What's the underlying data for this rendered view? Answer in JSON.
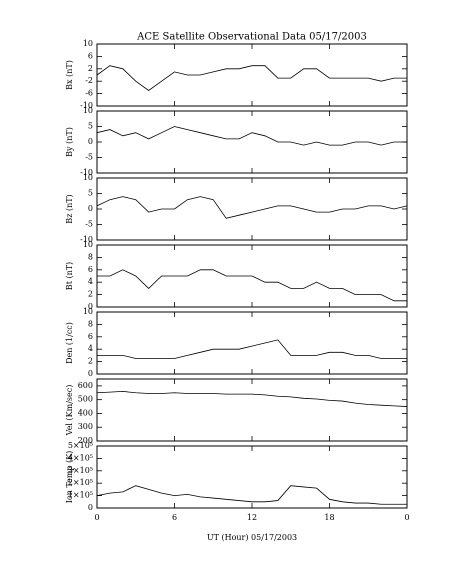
{
  "chart_data": [
    {
      "type": "line",
      "title": "ACE Satellite Observational Data   05/17/2003",
      "ylabel": "Bx (nT)",
      "ylim": [
        -10,
        10
      ],
      "yticks": [
        -10,
        -6,
        -2,
        2,
        6,
        10
      ],
      "values": [
        0,
        3,
        2,
        -2,
        -5,
        -2,
        1,
        0,
        0,
        1,
        2,
        2,
        3,
        3,
        -1,
        -1,
        2,
        2,
        -1,
        -1,
        -1,
        -1,
        -2,
        -1,
        -1
      ]
    },
    {
      "type": "line",
      "ylabel": "By (nT)",
      "ylim": [
        -10,
        10
      ],
      "yticks": [
        -10,
        -5,
        0,
        5,
        10
      ],
      "values": [
        3,
        4,
        2,
        3,
        1,
        3,
        5,
        4,
        3,
        2,
        1,
        1,
        3,
        2,
        0,
        0,
        -1,
        0,
        -1,
        -1,
        0,
        0,
        -1,
        0,
        0
      ]
    },
    {
      "type": "line",
      "ylabel": "Bz (nT)",
      "ylim": [
        -10,
        10
      ],
      "yticks": [
        -10,
        -5,
        0,
        5,
        10
      ],
      "values": [
        1,
        3,
        4,
        3,
        -1,
        0,
        0,
        3,
        4,
        3,
        -3,
        -2,
        -1,
        0,
        1,
        1,
        0,
        -1,
        -1,
        0,
        0,
        1,
        1,
        0,
        1
      ]
    },
    {
      "type": "line",
      "ylabel": "Bt (nT)",
      "ylim": [
        0,
        10
      ],
      "yticks": [
        0,
        2,
        4,
        6,
        8,
        10
      ],
      "values": [
        5,
        5,
        6,
        5,
        3,
        5,
        5,
        5,
        6,
        6,
        5,
        5,
        5,
        4,
        4,
        3,
        3,
        4,
        3,
        3,
        2,
        2,
        2,
        1,
        1
      ]
    },
    {
      "type": "line",
      "ylabel": "Den (1/cc)",
      "ylim": [
        0,
        10
      ],
      "yticks": [
        0,
        2,
        4,
        6,
        8,
        10
      ],
      "values": [
        3,
        3,
        3,
        2.5,
        2.5,
        2.5,
        2.5,
        3,
        3.5,
        4,
        4,
        4,
        4.5,
        5,
        5.5,
        3,
        3,
        3,
        3.5,
        3.5,
        3,
        3,
        2.5,
        2.5,
        2.5
      ]
    },
    {
      "type": "line",
      "ylabel": "Vel (Km/sec)",
      "ylim": [
        200,
        650
      ],
      "yticks": [
        200,
        300,
        400,
        500,
        600
      ],
      "values": [
        550,
        555,
        560,
        550,
        545,
        545,
        550,
        545,
        545,
        545,
        540,
        540,
        540,
        535,
        525,
        520,
        510,
        505,
        495,
        490,
        475,
        465,
        460,
        455,
        450
      ]
    },
    {
      "type": "line",
      "ylabel": "Ion Temp (K)",
      "xlabel": "UT (Hour)   05/17/2003",
      "ylim": [
        0,
        500000
      ],
      "yticks": [
        0,
        {
          "value": 100000,
          "label": "1×10⁵"
        },
        {
          "value": 200000,
          "label": "2×10⁵"
        },
        {
          "value": 300000,
          "label": "3×10⁵"
        },
        {
          "value": 400000,
          "label": "4×10⁵"
        },
        {
          "value": 500000,
          "label": "5×10⁵"
        }
      ],
      "x": [
        0,
        1,
        2,
        3,
        4,
        5,
        6,
        7,
        8,
        9,
        10,
        11,
        12,
        13,
        14,
        15,
        16,
        17,
        18,
        19,
        20,
        21,
        22,
        23,
        24
      ],
      "xlim": [
        0,
        24
      ],
      "xticks": [
        0,
        6,
        12,
        18,
        {
          "value": 24,
          "label": "0"
        }
      ],
      "values": [
        100000,
        120000,
        130000,
        180000,
        150000,
        120000,
        100000,
        110000,
        90000,
        80000,
        70000,
        60000,
        50000,
        50000,
        60000,
        180000,
        170000,
        160000,
        70000,
        50000,
        40000,
        40000,
        30000,
        30000,
        30000
      ]
    }
  ]
}
